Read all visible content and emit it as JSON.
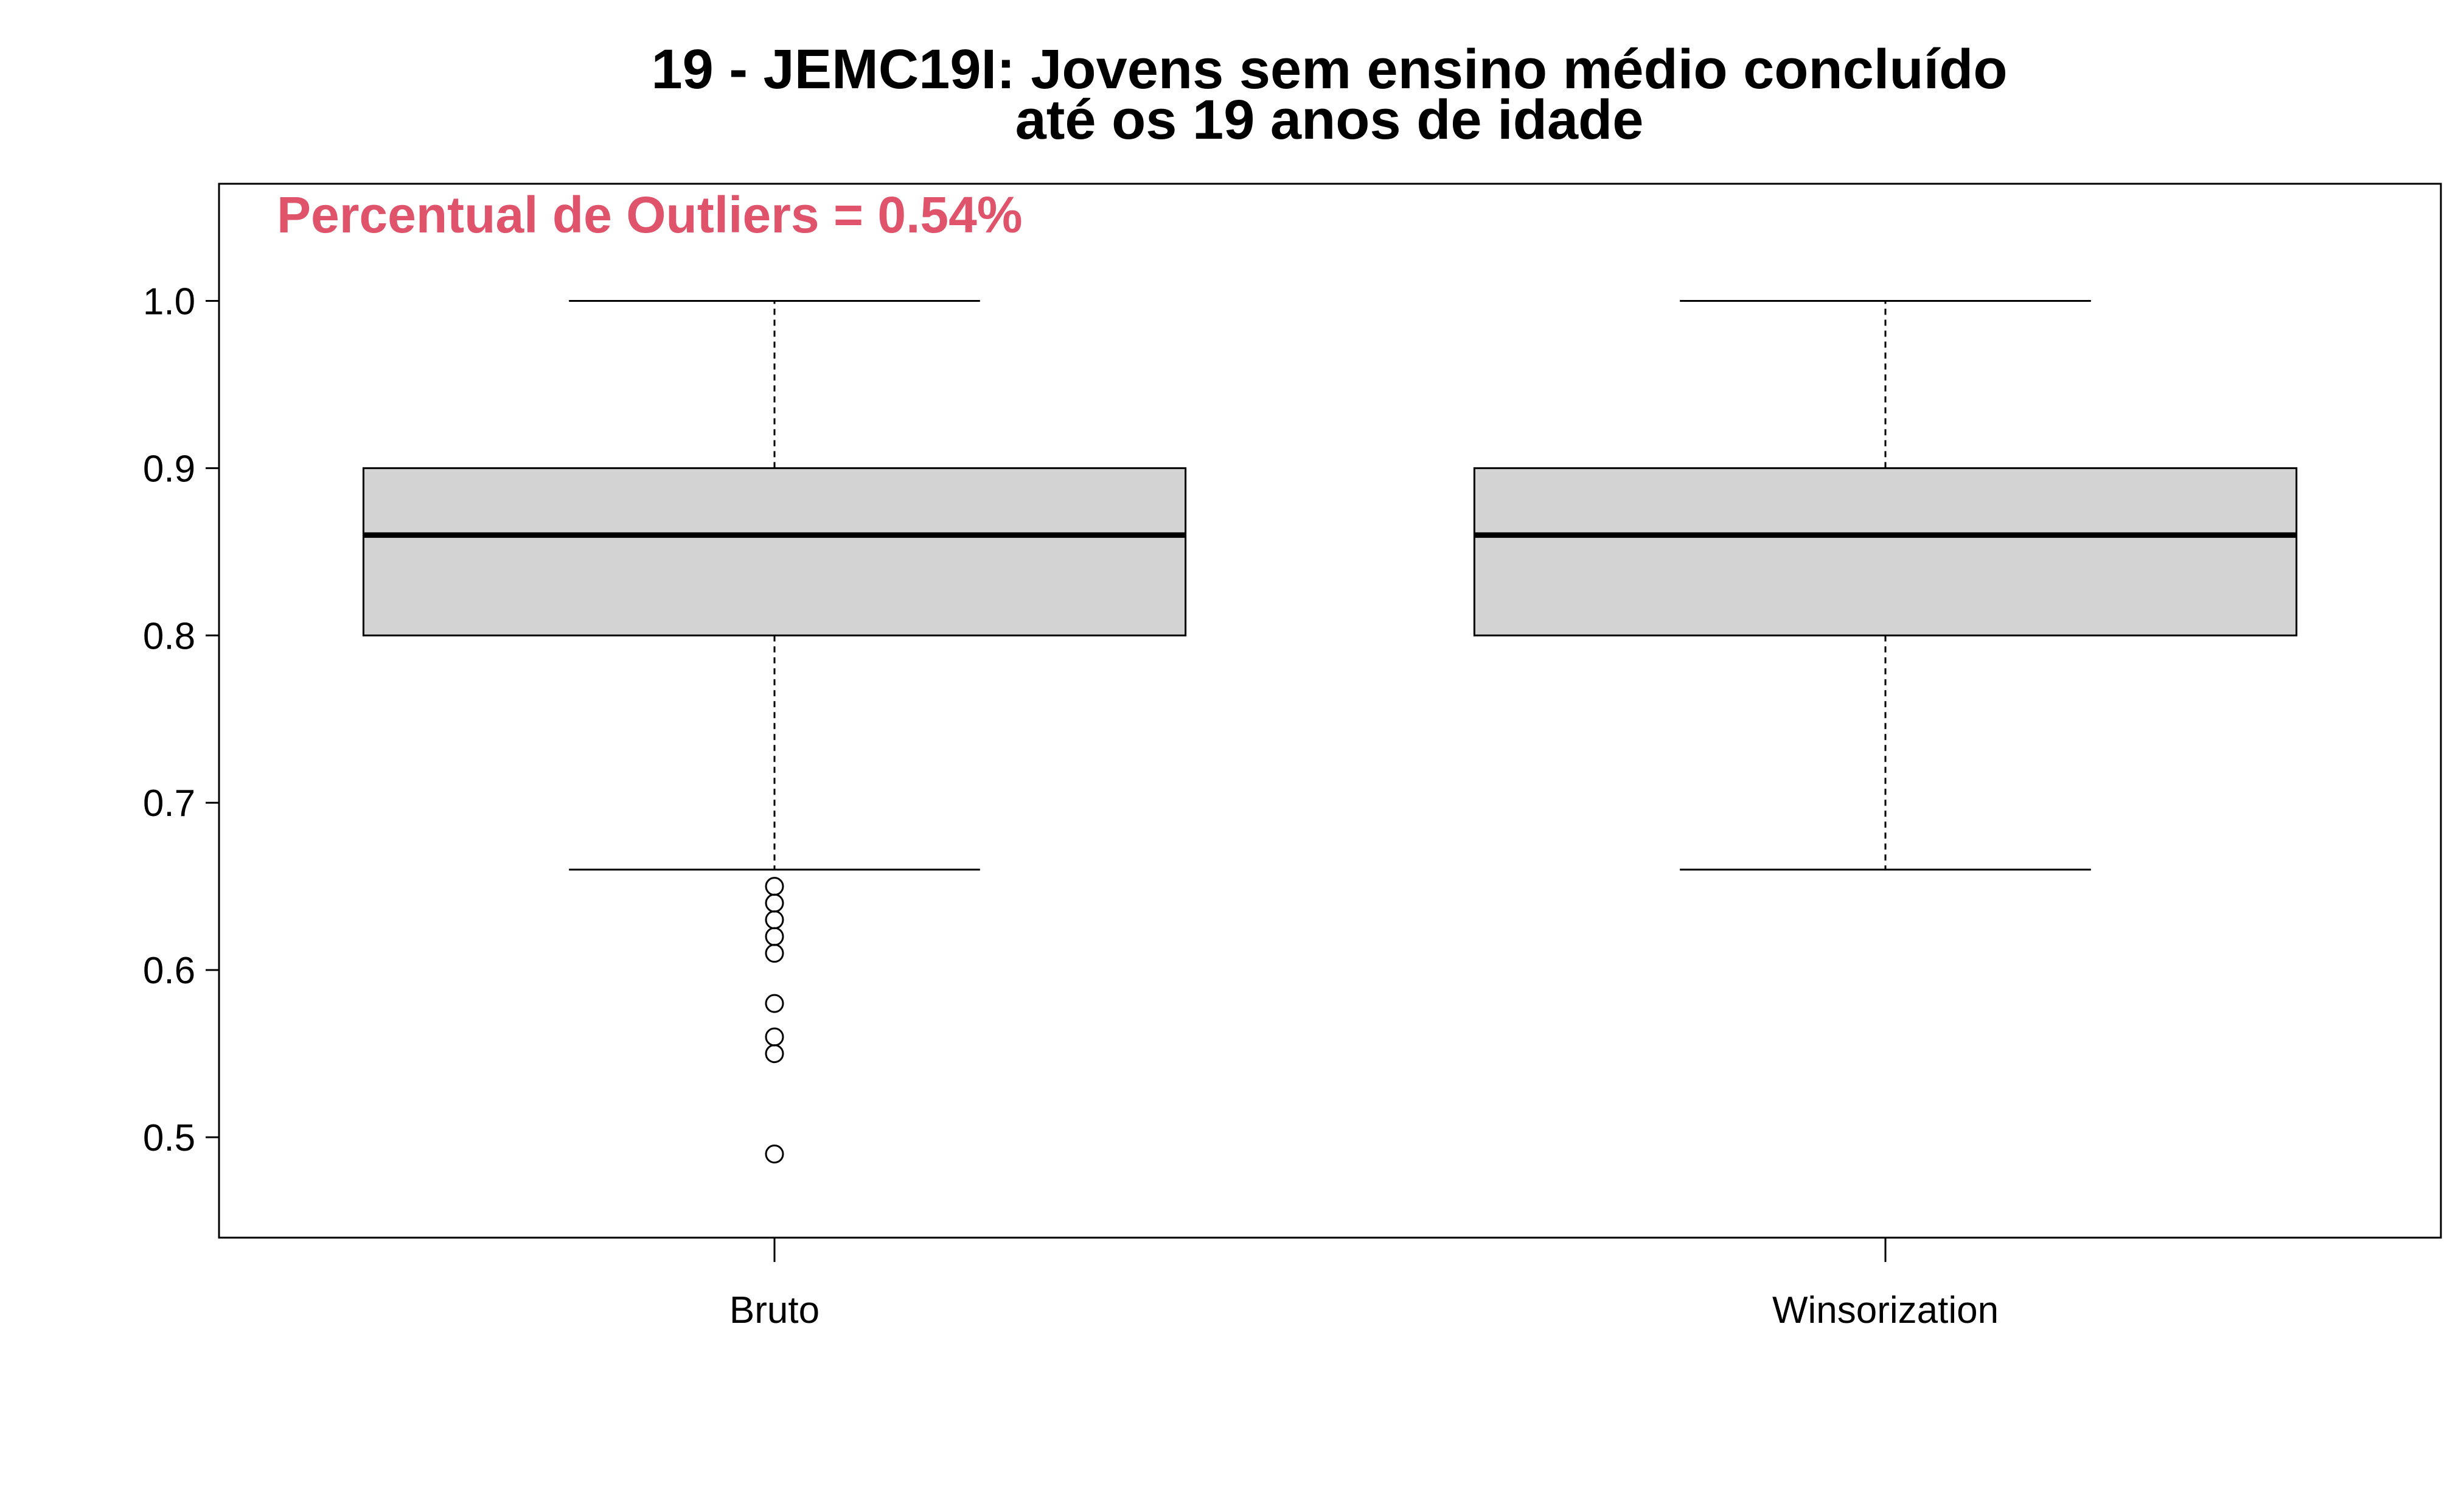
{
  "chart_data": {
    "type": "boxplot",
    "title_lines": [
      "19 - JEMC19I: Jovens sem ensino médio concluído",
      "até os 19 anos de idade"
    ],
    "annotation": {
      "text": "Percentual de Outliers = 0.54%",
      "color": "#DF536B"
    },
    "xlabel": "",
    "ylabel": "",
    "ylim": [
      0.44,
      1.07
    ],
    "yticks": [
      0.5,
      0.6,
      0.7,
      0.8,
      0.9,
      1.0
    ],
    "ytick_labels": [
      "0.5",
      "0.6",
      "0.7",
      "0.8",
      "0.9",
      "1.0"
    ],
    "box_color": "#D3D3D3",
    "categories": [
      "Bruto",
      "Winsorization"
    ],
    "boxes": [
      {
        "name": "Bruto",
        "whisker_low": 0.66,
        "q1": 0.8,
        "median": 0.86,
        "q3": 0.9,
        "whisker_high": 1.0,
        "outliers": [
          0.65,
          0.64,
          0.63,
          0.62,
          0.61,
          0.58,
          0.56,
          0.55,
          0.49
        ]
      },
      {
        "name": "Winsorization",
        "whisker_low": 0.66,
        "q1": 0.8,
        "median": 0.86,
        "q3": 0.9,
        "whisker_high": 1.0,
        "outliers": []
      }
    ]
  }
}
